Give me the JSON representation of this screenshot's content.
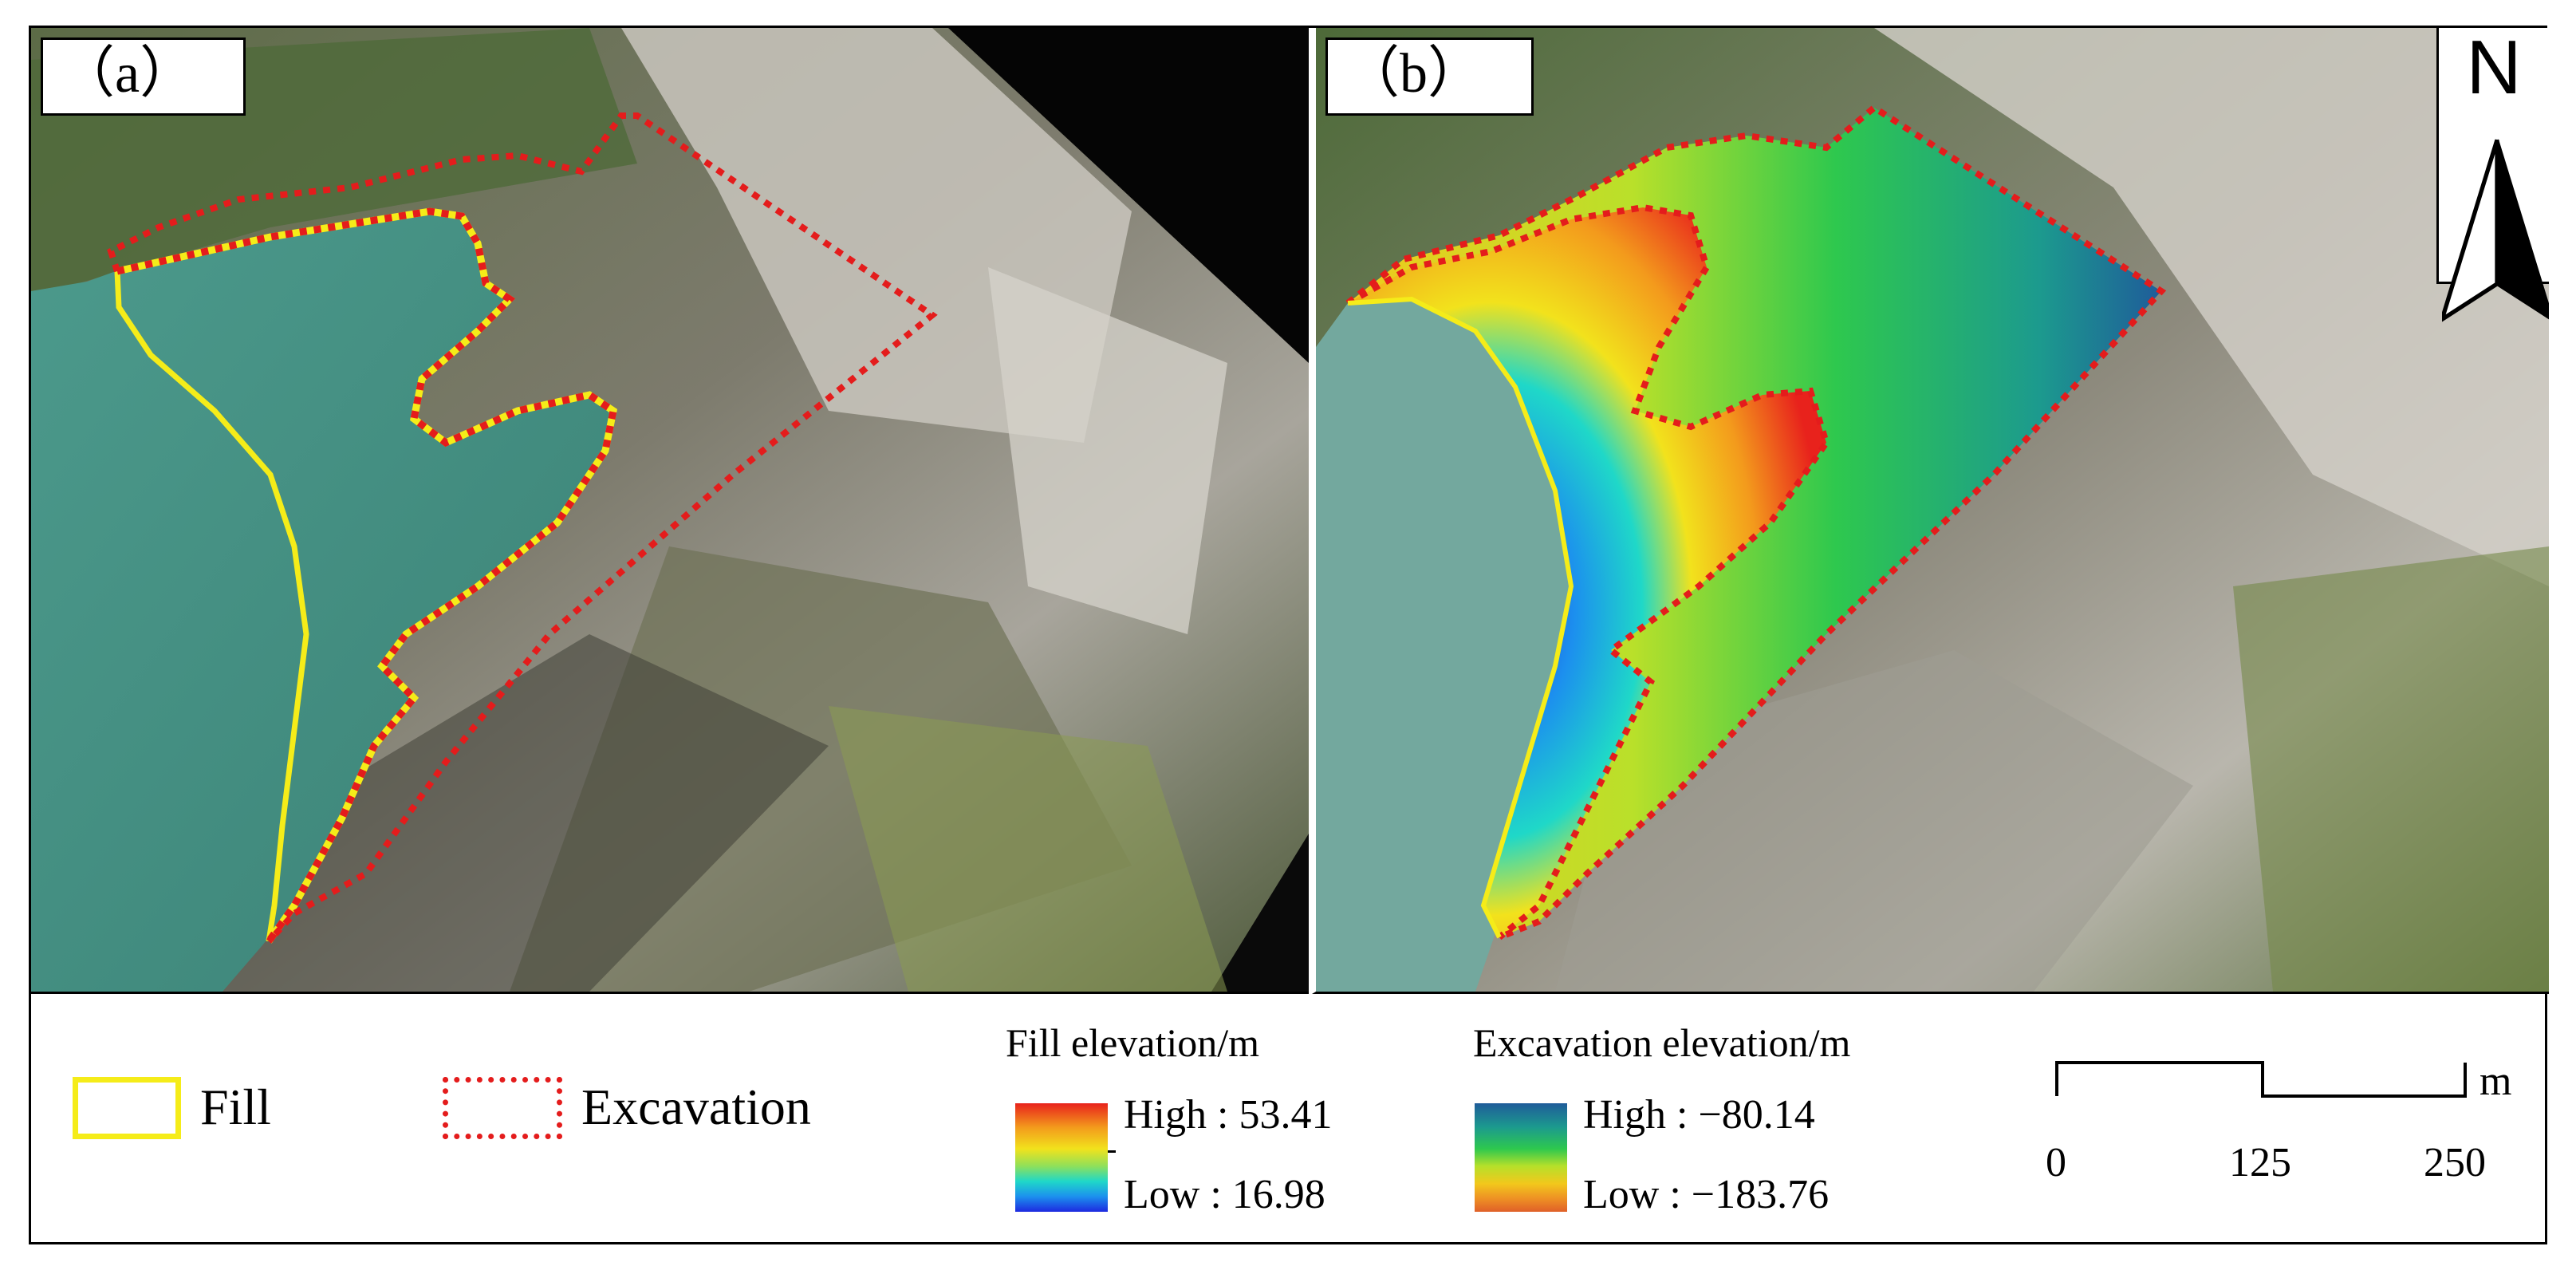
{
  "panels": {
    "a": {
      "label": "（a）"
    },
    "b": {
      "label": "（b）"
    }
  },
  "north_arrow": {
    "letter": "N",
    "icon": "north-arrow-icon"
  },
  "legend": {
    "fill_label": "Fill",
    "excavation_label": "Excavation",
    "fill_color": "#f5ec19",
    "excavation_color": "#e41c1c",
    "fill_elevation": {
      "title": "Fill elevation/m",
      "high": "High : 53.41",
      "low": "Low : 16.98"
    },
    "excavation_elevation": {
      "title": "Excavation elevation/m",
      "high": "High : −80.14",
      "low": "Low : −183.76"
    },
    "scale_bar": {
      "unit": "m",
      "ticks": [
        "0",
        "125",
        "250"
      ]
    }
  }
}
